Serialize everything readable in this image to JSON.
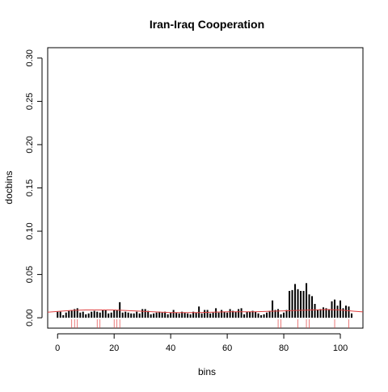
{
  "chart_data": {
    "type": "bar",
    "title": "Iran-Iraq Cooperation",
    "xlabel": "bins",
    "ylabel": "docbins",
    "xlim": [
      -3.5,
      108
    ],
    "ylim": [
      -0.012,
      0.312
    ],
    "x_ticks": [
      0,
      20,
      40,
      60,
      80,
      100
    ],
    "x_tick_labels": [
      "0",
      "20",
      "40",
      "60",
      "80",
      "100"
    ],
    "y_ticks": [
      0.0,
      0.05,
      0.1,
      0.15,
      0.2,
      0.25,
      0.3
    ],
    "y_tick_labels": [
      "0.00",
      "0.05",
      "0.10",
      "0.15",
      "0.20",
      "0.25",
      "0.30"
    ],
    "grid": false,
    "colors": {
      "bars": "#000000",
      "smooth": "#e04040",
      "rug": "#e04040",
      "frame": "#000000"
    },
    "series": [
      {
        "type": "bar",
        "x": [
          0,
          1,
          2,
          3,
          4,
          5,
          6,
          7,
          8,
          9,
          10,
          11,
          12,
          13,
          14,
          15,
          16,
          17,
          18,
          19,
          20,
          21,
          22,
          23,
          24,
          25,
          26,
          27,
          28,
          29,
          30,
          31,
          32,
          33,
          34,
          35,
          36,
          37,
          38,
          39,
          40,
          41,
          42,
          43,
          44,
          45,
          46,
          47,
          48,
          49,
          50,
          51,
          52,
          53,
          54,
          55,
          56,
          57,
          58,
          59,
          60,
          61,
          62,
          63,
          64,
          65,
          66,
          67,
          68,
          69,
          70,
          71,
          72,
          73,
          74,
          75,
          76,
          77,
          78,
          79,
          80,
          81,
          82,
          83,
          84,
          85,
          86,
          87,
          88,
          89,
          90,
          91,
          92,
          93,
          94,
          95,
          96,
          97,
          98,
          99,
          100,
          101,
          102,
          103,
          104
        ],
        "values": [
          0.007,
          0.007,
          0.003,
          0.006,
          0.008,
          0.009,
          0.01,
          0.011,
          0.006,
          0.007,
          0.004,
          0.005,
          0.007,
          0.008,
          0.007,
          0.006,
          0.009,
          0.009,
          0.005,
          0.006,
          0.009,
          0.009,
          0.018,
          0.006,
          0.007,
          0.006,
          0.005,
          0.005,
          0.007,
          0.005,
          0.01,
          0.01,
          0.008,
          0.004,
          0.005,
          0.006,
          0.007,
          0.006,
          0.007,
          0.004,
          0.006,
          0.009,
          0.006,
          0.005,
          0.007,
          0.006,
          0.005,
          0.004,
          0.007,
          0.006,
          0.013,
          0.005,
          0.009,
          0.009,
          0.005,
          0.006,
          0.011,
          0.006,
          0.009,
          0.007,
          0.006,
          0.01,
          0.008,
          0.007,
          0.01,
          0.011,
          0.004,
          0.007,
          0.007,
          0.008,
          0.007,
          0.005,
          0.003,
          0.004,
          0.006,
          0.008,
          0.02,
          0.009,
          0.01,
          0.004,
          0.006,
          0.009,
          0.031,
          0.032,
          0.039,
          0.033,
          0.031,
          0.031,
          0.04,
          0.027,
          0.025,
          0.016,
          0.009,
          0.01,
          0.012,
          0.011,
          0.01,
          0.019,
          0.021,
          0.014,
          0.02,
          0.011,
          0.014,
          0.013,
          0.005
        ]
      },
      {
        "type": "line",
        "x": [
          -3.5,
          5,
          10,
          20,
          30,
          40,
          50,
          60,
          70,
          75,
          80,
          85,
          90,
          95,
          100,
          105,
          108
        ],
        "values": [
          0.0065,
          0.0085,
          0.009,
          0.009,
          0.0075,
          0.006,
          0.006,
          0.007,
          0.007,
          0.0075,
          0.008,
          0.0085,
          0.009,
          0.0095,
          0.009,
          0.0075,
          0.0068
        ]
      }
    ],
    "rug": [
      5,
      6,
      7,
      14,
      15,
      20,
      21,
      22,
      78,
      79,
      85,
      88,
      89,
      98,
      103
    ]
  }
}
